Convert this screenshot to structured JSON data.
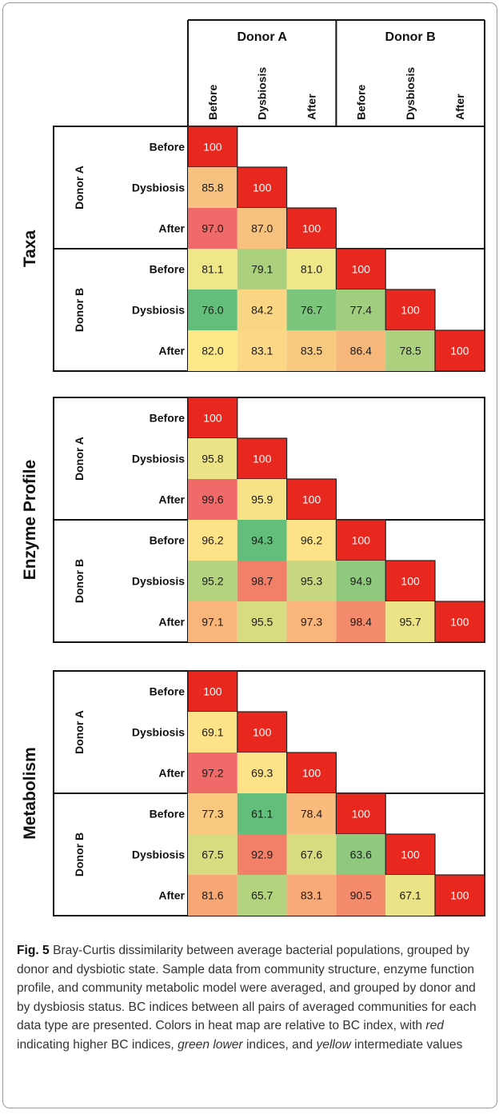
{
  "chart_data": {
    "type": "heatmap",
    "top_labels": {
      "col_groups": [
        "Donor A",
        "Donor B"
      ],
      "columns": [
        "Before",
        "Dysbiosis",
        "After",
        "Before",
        "Dysbiosis",
        "After"
      ]
    },
    "row_groups": [
      "Donor A",
      "Donor B"
    ],
    "row_labels": [
      "Before",
      "Dysbiosis",
      "After",
      "Before",
      "Dysbiosis",
      "After"
    ],
    "panels": [
      {
        "title": "Taxa",
        "rows": [
          [
            100
          ],
          [
            85.8,
            100
          ],
          [
            97.0,
            87.0,
            100
          ],
          [
            81.1,
            79.1,
            81.0,
            100
          ],
          [
            76.0,
            84.2,
            76.7,
            77.4,
            100
          ],
          [
            82.0,
            83.1,
            83.5,
            86.4,
            78.5,
            100
          ]
        ],
        "labels": [
          [
            "100"
          ],
          [
            "85.8",
            "100"
          ],
          [
            "97.0",
            "87.0",
            "100"
          ],
          [
            "81.1",
            "79.1",
            "81.0",
            "100"
          ],
          [
            "76.0",
            "84.2",
            "76.7",
            "77.4",
            "100"
          ],
          [
            "82.0",
            "83.1",
            "83.5",
            "86.4",
            "78.5",
            "100"
          ]
        ],
        "colors": [
          [
            "#e8281e"
          ],
          [
            "#f7c27f",
            "#e8281e"
          ],
          [
            "#ef6a68",
            "#f7c27f",
            "#e8281e"
          ],
          [
            "#f0e789",
            "#acd17e",
            "#f0e789",
            "#e8281e"
          ],
          [
            "#63be7b",
            "#f8d683",
            "#7cc57d",
            "#a0cd7e",
            "#e8281e"
          ],
          [
            "#fde887",
            "#fbd786",
            "#fac980",
            "#f7b77a",
            "#acd17e",
            "#e8281e"
          ]
        ]
      },
      {
        "title": "Enzyme Profile",
        "rows": [
          [
            100
          ],
          [
            95.8,
            100
          ],
          [
            99.6,
            95.9,
            100
          ],
          [
            96.2,
            94.3,
            96.2,
            100
          ],
          [
            95.2,
            98.7,
            95.3,
            94.9,
            100
          ],
          [
            97.1,
            95.5,
            97.3,
            98.4,
            95.7,
            100
          ]
        ],
        "labels": [
          [
            "100"
          ],
          [
            "95.8",
            "100"
          ],
          [
            "99.6",
            "95.9",
            "100"
          ],
          [
            "96.2",
            "94.3",
            "96.2",
            "100"
          ],
          [
            "95.2",
            "98.7",
            "95.3",
            "94.9",
            "100"
          ],
          [
            "97.1",
            "95.5",
            "97.3",
            "98.4",
            "95.7",
            "100"
          ]
        ],
        "colors": [
          [
            "#e8281e"
          ],
          [
            "#ebe386",
            "#e8281e"
          ],
          [
            "#ef6a68",
            "#f7e285",
            "#e8281e"
          ],
          [
            "#fde287",
            "#63be7b",
            "#fde287",
            "#e8281e"
          ],
          [
            "#b4d37f",
            "#f28069",
            "#c7d880",
            "#8fc97d",
            "#e8281e"
          ],
          [
            "#fab67a",
            "#d7dc81",
            "#fab67a",
            "#f48b6d",
            "#ebe386",
            "#e8281e"
          ]
        ]
      },
      {
        "title": "Metabolism",
        "rows": [
          [
            100
          ],
          [
            69.1,
            100
          ],
          [
            97.2,
            69.3,
            100
          ],
          [
            77.3,
            61.1,
            78.4,
            100
          ],
          [
            67.5,
            92.9,
            67.6,
            63.6,
            100
          ],
          [
            81.6,
            65.7,
            83.1,
            90.5,
            67.1,
            100
          ]
        ],
        "labels": [
          [
            "100"
          ],
          [
            "69.1",
            "100"
          ],
          [
            "97.2",
            "69.3",
            "100"
          ],
          [
            "77.3",
            "61.1",
            "78.4",
            "100"
          ],
          [
            "67.5",
            "92.9",
            "67.6",
            "63.6",
            "100"
          ],
          [
            "81.6",
            "65.7",
            "83.1",
            "90.5",
            "67.1",
            "100"
          ]
        ],
        "colors": [
          [
            "#e8281e"
          ],
          [
            "#fde287",
            "#e8281e"
          ],
          [
            "#ef6a68",
            "#fde287",
            "#e8281e"
          ],
          [
            "#fac980",
            "#63be7b",
            "#fabb7c",
            "#e8281e"
          ],
          [
            "#d7dc81",
            "#f28069",
            "#d7dc81",
            "#8fc97d",
            "#e8281e"
          ],
          [
            "#f7a875",
            "#b4d37f",
            "#f8ab76",
            "#f48b6d",
            "#ebe386",
            "#e8281e"
          ]
        ]
      }
    ]
  },
  "caption": {
    "fig_label": "Fig. 5",
    "text_1": " Bray-Curtis dissimilarity between average bacterial populations, grouped by donor and dysbiotic state. Sample data from community structure, enzyme function profile, and community metabolic model were averaged, and grouped by donor and by dysbiosis status. BC indices between all pairs of averaged communities for each data type are presented. Colors in heat map are relative to BC index, with ",
    "red": "red",
    "text_2": " indicating higher BC indices, ",
    "green": "green",
    "text_3": " ",
    "lower": "lower",
    "text_4": " indices, and ",
    "yellow": "yellow",
    "text_5": " intermediate values"
  }
}
